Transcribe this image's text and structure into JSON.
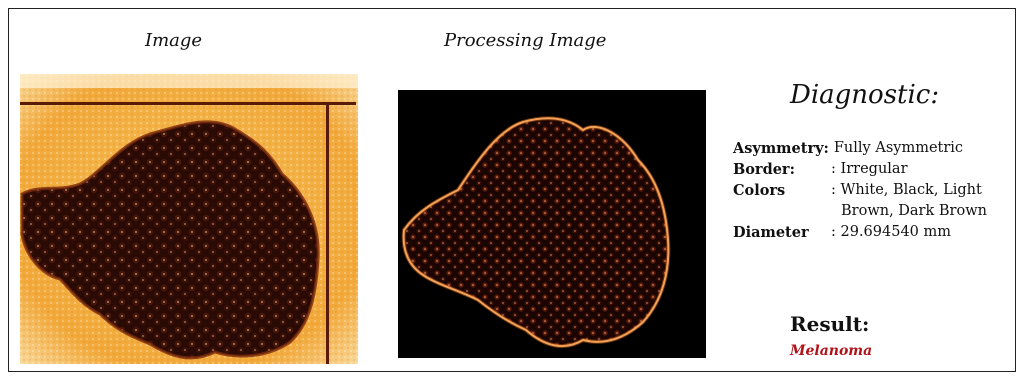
{
  "columns": {
    "image_title": "Image",
    "processing_title": "Processing Image"
  },
  "diagnostic": {
    "title": "Diagnostic:",
    "asymmetry_label": "Asymmetry:",
    "asymmetry_value": "Fully Asymmetric",
    "border_label": "Border:",
    "border_value": ": Irregular",
    "colors_label": "Colors",
    "colors_value_line1": ": White, Black, Light",
    "colors_value_line2": "Brown, Dark Brown",
    "diameter_label": "Diameter",
    "diameter_value": ": 29.694540 mm"
  },
  "result": {
    "title": "Result:",
    "value": "Melanoma",
    "value_color": "#b0131a"
  },
  "colors": {
    "skin": "#f4b43a",
    "lesion": "#3a0d06",
    "processed_bg": "#000000"
  }
}
